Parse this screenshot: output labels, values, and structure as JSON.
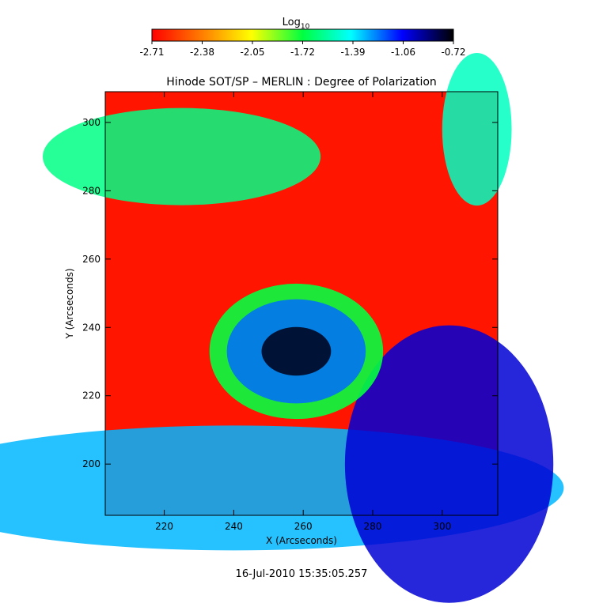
{
  "chart_data": {
    "type": "heatmap",
    "title": "Hinode SOT/SP – MERLIN : Degree of Polarization",
    "xlabel": "X (Arcseconds)",
    "ylabel": "Y (Arcseconds)",
    "xlim": [
      203,
      316
    ],
    "ylim": [
      185,
      309
    ],
    "x_ticks": [
      220,
      240,
      260,
      280,
      300
    ],
    "y_ticks": [
      200,
      220,
      240,
      260,
      280,
      300
    ],
    "grid": false,
    "colorbar": {
      "label_main": "Log",
      "label_sub": "10",
      "range": [
        -2.71,
        -0.72
      ],
      "tick_labels": [
        "-2.71",
        "-2.38",
        "-2.05",
        "-1.72",
        "-1.39",
        "-1.06",
        "-0.72"
      ],
      "colors": [
        "#ff0000",
        "#ff8000",
        "#ffff00",
        "#00ff40",
        "#00ffff",
        "#0000ff",
        "#000000"
      ],
      "placement": "top"
    },
    "features": [
      {
        "name": "sunspot umbra",
        "x": 258,
        "y": 233,
        "value": -0.75
      },
      {
        "name": "sunspot penumbra",
        "x": 258,
        "y": 233,
        "value": -1.2
      },
      {
        "name": "network lane lower-left",
        "x": 240,
        "y": 193,
        "value": -1.3
      },
      {
        "name": "network patch lower-right",
        "x": 302,
        "y": 200,
        "value": -1.0
      },
      {
        "name": "network lane upper-left",
        "x": 225,
        "y": 290,
        "value": -1.6
      },
      {
        "name": "network patch upper-right",
        "x": 310,
        "y": 298,
        "value": -1.5
      },
      {
        "name": "quiet sun background",
        "x": 270,
        "y": 270,
        "value": -2.65
      }
    ]
  },
  "footer": {
    "timestamp": "16-Jul-2010 15:35:05.257"
  }
}
